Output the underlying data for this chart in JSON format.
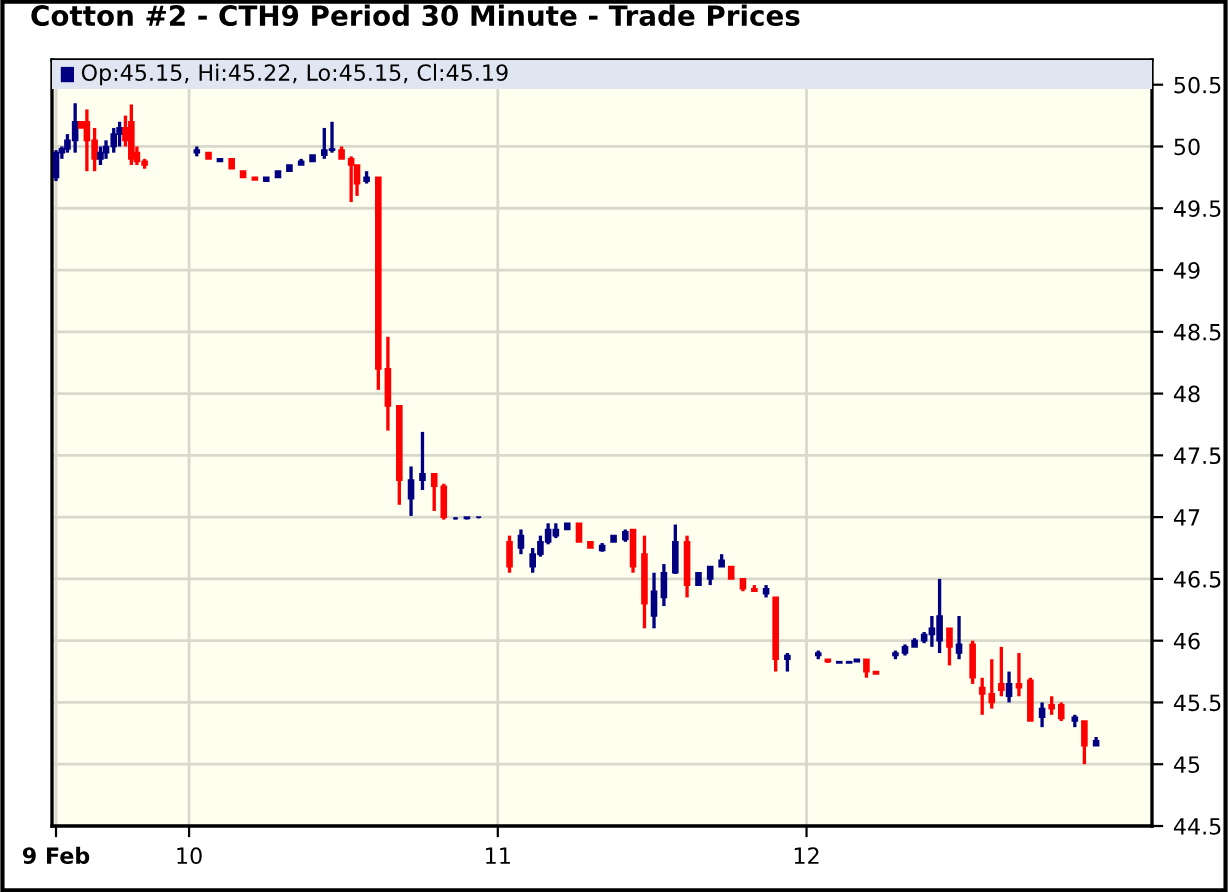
{
  "chart_data": {
    "type": "candlestick",
    "title": "Cotton #2 - CTH9 Period 30 Minute - Trade Prices",
    "annotations": [
      "Op:45.15, Hi:45.22, Lo:45.15, Cl:45.19"
    ],
    "x": [
      9.569,
      9.588,
      9.606,
      9.631,
      9.65,
      9.669,
      9.694,
      9.713,
      9.731,
      9.756,
      9.775,
      9.794,
      9.813,
      9.831,
      9.856,
      10.025,
      10.063,
      10.1,
      10.138,
      10.175,
      10.213,
      10.25,
      10.288,
      10.325,
      10.363,
      10.4,
      10.438,
      10.463,
      10.494,
      10.525,
      10.544,
      10.575,
      10.613,
      10.644,
      10.681,
      10.719,
      10.756,
      10.794,
      10.825,
      10.863,
      10.9,
      10.938,
      11.038,
      11.075,
      11.113,
      11.138,
      11.163,
      11.188,
      11.225,
      11.263,
      11.3,
      11.338,
      11.375,
      11.413,
      11.438,
      11.475,
      11.506,
      11.538,
      11.575,
      11.613,
      11.65,
      11.688,
      11.725,
      11.756,
      11.794,
      11.831,
      11.869,
      11.9,
      11.938,
      12.038,
      12.069,
      12.106,
      12.138,
      12.163,
      12.194,
      12.225,
      12.288,
      12.319,
      12.35,
      12.381,
      12.406,
      12.431,
      12.463,
      12.494,
      12.538,
      12.569,
      12.6,
      12.631,
      12.656,
      12.688,
      12.725,
      12.763,
      12.794,
      12.825,
      12.869,
      12.9,
      12.938
    ],
    "ohlc": [
      [
        49.75,
        49.97,
        49.72,
        49.95
      ],
      [
        49.95,
        50.0,
        49.9,
        49.98
      ],
      [
        49.98,
        50.1,
        49.95,
        50.05
      ],
      [
        50.05,
        50.35,
        49.95,
        50.2
      ],
      [
        50.2,
        50.2,
        50.15,
        50.15
      ],
      [
        50.2,
        50.3,
        49.8,
        50.05
      ],
      [
        50.05,
        50.15,
        49.8,
        49.9
      ],
      [
        49.9,
        50.0,
        49.85,
        49.95
      ],
      [
        49.95,
        50.05,
        49.9,
        50.0
      ],
      [
        50.0,
        50.15,
        49.95,
        50.1
      ],
      [
        50.1,
        50.2,
        50.0,
        50.15
      ],
      [
        50.15,
        50.25,
        50.0,
        50.05
      ],
      [
        50.2,
        50.34,
        49.85,
        49.9
      ],
      [
        49.95,
        50.0,
        49.85,
        49.88
      ],
      [
        49.88,
        49.9,
        49.82,
        49.85
      ],
      [
        49.95,
        50.0,
        49.92,
        49.97
      ],
      [
        49.95,
        49.95,
        49.9,
        49.9
      ],
      [
        49.88,
        49.9,
        49.88,
        49.9
      ],
      [
        49.9,
        49.9,
        49.82,
        49.82
      ],
      [
        49.8,
        49.8,
        49.75,
        49.75
      ],
      [
        49.75,
        49.75,
        49.73,
        49.73
      ],
      [
        49.72,
        49.75,
        49.72,
        49.75
      ],
      [
        49.75,
        49.8,
        49.75,
        49.8
      ],
      [
        49.8,
        49.85,
        49.8,
        49.85
      ],
      [
        49.85,
        49.9,
        49.85,
        49.88
      ],
      [
        49.88,
        49.93,
        49.88,
        49.93
      ],
      [
        49.93,
        50.15,
        49.9,
        49.97
      ],
      [
        49.97,
        50.2,
        49.95,
        49.98
      ],
      [
        49.97,
        50.0,
        49.9,
        49.9
      ],
      [
        49.9,
        49.92,
        49.55,
        49.85
      ],
      [
        49.85,
        49.85,
        49.6,
        49.7
      ],
      [
        49.72,
        49.8,
        49.7,
        49.75
      ],
      [
        49.75,
        49.75,
        48.03,
        48.2
      ],
      [
        48.2,
        48.46,
        47.7,
        47.9
      ],
      [
        47.9,
        47.9,
        47.1,
        47.3
      ],
      [
        47.15,
        47.41,
        47.01,
        47.3
      ],
      [
        47.3,
        47.69,
        47.22,
        47.35
      ],
      [
        47.35,
        47.35,
        47.05,
        47.25
      ],
      [
        47.25,
        47.27,
        46.98,
        47.0
      ],
      [
        46.99,
        47.0,
        46.98,
        46.99
      ],
      [
        46.99,
        47.0,
        46.98,
        47.0
      ],
      [
        47.0,
        47.0,
        46.99,
        47.0
      ],
      [
        46.8,
        46.85,
        46.55,
        46.6
      ],
      [
        46.75,
        46.9,
        46.7,
        46.85
      ],
      [
        46.6,
        46.75,
        46.55,
        46.7
      ],
      [
        46.7,
        46.85,
        46.68,
        46.8
      ],
      [
        46.8,
        46.95,
        46.78,
        46.9
      ],
      [
        46.85,
        46.95,
        46.83,
        46.9
      ],
      [
        46.9,
        46.95,
        46.9,
        46.95
      ],
      [
        46.95,
        46.95,
        46.8,
        46.8
      ],
      [
        46.8,
        46.8,
        46.75,
        46.75
      ],
      [
        46.73,
        46.79,
        46.72,
        46.77
      ],
      [
        46.8,
        46.85,
        46.8,
        46.85
      ],
      [
        46.82,
        46.9,
        46.8,
        46.88
      ],
      [
        46.9,
        46.9,
        46.55,
        46.6
      ],
      [
        46.7,
        46.85,
        46.1,
        46.3
      ],
      [
        46.2,
        46.55,
        46.1,
        46.4
      ],
      [
        46.35,
        46.62,
        46.28,
        46.55
      ],
      [
        46.55,
        46.94,
        46.54,
        46.8
      ],
      [
        46.8,
        46.85,
        46.35,
        46.45
      ],
      [
        46.45,
        46.55,
        46.45,
        46.55
      ],
      [
        46.5,
        46.6,
        46.45,
        46.6
      ],
      [
        46.6,
        46.7,
        46.6,
        46.65
      ],
      [
        46.6,
        46.6,
        46.5,
        46.5
      ],
      [
        46.5,
        46.5,
        46.4,
        46.42
      ],
      [
        46.42,
        46.45,
        46.4,
        46.4
      ],
      [
        46.38,
        46.45,
        46.35,
        46.42
      ],
      [
        46.35,
        46.35,
        45.75,
        45.85
      ],
      [
        45.85,
        45.9,
        45.75,
        45.88
      ],
      [
        45.88,
        45.92,
        45.85,
        45.9
      ],
      [
        45.85,
        45.85,
        45.82,
        45.83
      ],
      [
        45.82,
        45.83,
        45.82,
        45.83
      ],
      [
        45.82,
        45.83,
        45.82,
        45.83
      ],
      [
        45.83,
        45.85,
        45.83,
        45.85
      ],
      [
        45.85,
        45.85,
        45.7,
        45.75
      ],
      [
        45.75,
        45.75,
        45.73,
        45.73
      ],
      [
        45.88,
        45.92,
        45.85,
        45.9
      ],
      [
        45.9,
        45.97,
        45.88,
        45.95
      ],
      [
        45.95,
        46.02,
        45.95,
        46.0
      ],
      [
        46.0,
        46.07,
        45.98,
        46.05
      ],
      [
        46.05,
        46.2,
        45.95,
        46.1
      ],
      [
        46.0,
        46.5,
        45.9,
        46.2
      ],
      [
        46.1,
        46.1,
        45.8,
        45.95
      ],
      [
        45.9,
        46.2,
        45.85,
        45.97
      ],
      [
        45.97,
        46.0,
        45.65,
        45.7
      ],
      [
        45.62,
        45.7,
        45.4,
        45.57
      ],
      [
        45.57,
        45.85,
        45.45,
        45.5
      ],
      [
        45.65,
        45.95,
        45.55,
        45.6
      ],
      [
        45.55,
        45.75,
        45.5,
        45.65
      ],
      [
        45.65,
        45.9,
        45.55,
        45.62
      ],
      [
        45.68,
        45.7,
        45.35,
        45.35
      ],
      [
        45.38,
        45.5,
        45.3,
        45.45
      ],
      [
        45.48,
        45.55,
        45.4,
        45.45
      ],
      [
        45.48,
        45.5,
        45.35,
        45.37
      ],
      [
        45.35,
        45.4,
        45.3,
        45.38
      ],
      [
        45.35,
        45.35,
        45.0,
        45.15
      ],
      [
        45.15,
        45.22,
        45.15,
        45.19
      ]
    ],
    "colors": [
      "#000080",
      "#000080",
      "#000080",
      "#000080",
      "#ff0000",
      "#ff0000",
      "#ff0000",
      "#000080",
      "#000080",
      "#000080",
      "#000080",
      "#ff0000",
      "#ff0000",
      "#ff0000",
      "#ff0000",
      "#000080",
      "#ff0000",
      "#000080",
      "#ff0000",
      "#ff0000",
      "#ff0000",
      "#000080",
      "#000080",
      "#000080",
      "#000080",
      "#000080",
      "#000080",
      "#000080",
      "#ff0000",
      "#ff0000",
      "#ff0000",
      "#000080",
      "#ff0000",
      "#ff0000",
      "#ff0000",
      "#000080",
      "#000080",
      "#ff0000",
      "#ff0000",
      "#000080",
      "#000080",
      "#000080",
      "#ff0000",
      "#000080",
      "#000080",
      "#000080",
      "#000080",
      "#000080",
      "#000080",
      "#ff0000",
      "#ff0000",
      "#000080",
      "#000080",
      "#000080",
      "#ff0000",
      "#ff0000",
      "#000080",
      "#000080",
      "#000080",
      "#ff0000",
      "#000080",
      "#000080",
      "#000080",
      "#ff0000",
      "#ff0000",
      "#ff0000",
      "#000080",
      "#ff0000",
      "#000080",
      "#000080",
      "#ff0000",
      "#000080",
      "#000080",
      "#000080",
      "#ff0000",
      "#ff0000",
      "#000080",
      "#000080",
      "#000080",
      "#000080",
      "#000080",
      "#000080",
      "#ff0000",
      "#000080",
      "#ff0000",
      "#ff0000",
      "#ff0000",
      "#ff0000",
      "#000080",
      "#ff0000",
      "#ff0000",
      "#000080",
      "#ff0000",
      "#ff0000",
      "#000080",
      "#ff0000",
      "#000080"
    ],
    "xlim": [
      9.556,
      13.119
    ],
    "xticks": [
      {
        "value": 9.569,
        "label": "9 Feb"
      },
      10,
      11,
      12
    ],
    "ylim": [
      44.5,
      50.7
    ],
    "yticks": [
      44.5,
      45,
      45.5,
      46,
      46.5,
      47,
      47.5,
      48,
      48.5,
      49,
      49.5,
      50,
      50.5
    ],
    "grid": true
  }
}
